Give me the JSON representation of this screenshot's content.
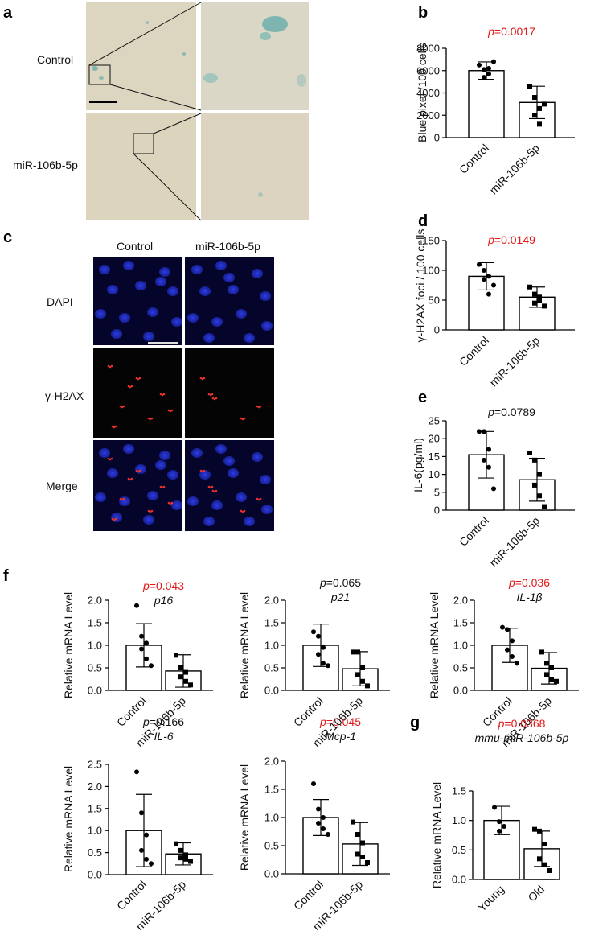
{
  "figure": {
    "panel_a": {
      "letter": "a",
      "row_labels": [
        "Control",
        "miR-106b-5p"
      ]
    },
    "panel_c": {
      "letter": "c",
      "col_labels": [
        "Control",
        "miR-106b-5p"
      ],
      "row_labels": [
        "DAPI",
        "γ-H2AX",
        "Merge"
      ]
    }
  },
  "colors": {
    "significant": "#e0191b",
    "nonsignificant": "#111111",
    "bar_fill": "#ffffff",
    "bar_stroke": "#000000",
    "microscopy_bg": "#d8d3bf",
    "dapi_bg": "#05052a",
    "dapi_nucleus": "#1f2fd6",
    "h2ax_bg": "#030303",
    "h2ax_dot": "#e12020"
  },
  "chart_data": [
    {
      "id": "b",
      "letter": "b",
      "type": "bar",
      "categories": [
        "Control",
        "miR-106b-5p"
      ],
      "ylabel": "Blue pixel /100 cells",
      "ylim": [
        0,
        8000
      ],
      "yticks": [
        "0",
        "2000",
        "4000",
        "6000",
        "8000"
      ],
      "ytick_values": [
        0,
        2000,
        4000,
        6000,
        8000
      ],
      "pvalue": "0.0017",
      "significant": true,
      "gene": "",
      "means": [
        6000,
        3150
      ],
      "sd": [
        780,
        1450
      ],
      "points": [
        [
          6500,
          6100,
          5700,
          5400,
          6200,
          6800
        ],
        [
          4600,
          3600,
          2600,
          2000,
          1200,
          3000
        ]
      ]
    },
    {
      "id": "d",
      "letter": "d",
      "type": "bar",
      "categories": [
        "Control",
        "miR-106b-5p"
      ],
      "ylabel": "γ-H2AX foci / 100 cells",
      "ylim": [
        0,
        150
      ],
      "yticks": [
        "0",
        "50",
        "100",
        "150"
      ],
      "ytick_values": [
        0,
        50,
        100,
        150
      ],
      "pvalue": "0.0149",
      "significant": true,
      "gene": "",
      "means": [
        90,
        55
      ],
      "sd": [
        23,
        17
      ],
      "points": [
        [
          110,
          100,
          90,
          85,
          60,
          75
        ],
        [
          72,
          60,
          50,
          45,
          55,
          40
        ]
      ]
    },
    {
      "id": "e",
      "letter": "e",
      "type": "bar",
      "categories": [
        "Control",
        "miR-106b-5p"
      ],
      "ylabel": "IL-6(pg/ml)",
      "ylim": [
        0,
        25
      ],
      "yticks": [
        "0",
        "5",
        "10",
        "15",
        "20",
        "25"
      ],
      "ytick_values": [
        0,
        5,
        10,
        15,
        20,
        25
      ],
      "pvalue": "0.0789",
      "significant": false,
      "gene": "",
      "means": [
        15.5,
        8.5
      ],
      "sd": [
        6.5,
        6
      ],
      "points": [
        [
          22,
          22,
          17,
          14,
          12,
          6
        ],
        [
          16,
          14,
          10,
          7,
          4,
          1
        ]
      ]
    },
    {
      "id": "f1",
      "letter": "f",
      "type": "bar",
      "categories": [
        "Control",
        "miR-106b-5p"
      ],
      "ylabel": "Relative mRNA Level",
      "ylim": [
        0,
        2.0
      ],
      "yticks": [
        "0.0",
        "0.5",
        "1.0",
        "1.5",
        "2.0"
      ],
      "ytick_values": [
        0,
        0.5,
        1.0,
        1.5,
        2.0
      ],
      "pvalue": "0.043",
      "significant": true,
      "gene": "p16",
      "means": [
        1.0,
        0.43
      ],
      "sd": [
        0.48,
        0.36
      ],
      "points": [
        [
          1.88,
          1.2,
          1.05,
          0.92,
          0.7,
          0.55
        ],
        [
          0.78,
          0.5,
          0.4,
          0.3,
          0.2,
          0.12
        ]
      ]
    },
    {
      "id": "f2",
      "letter": "",
      "type": "bar",
      "categories": [
        "Control",
        "miR-106b-5p"
      ],
      "ylabel": "Relative mRNA Level",
      "ylim": [
        0,
        2.0
      ],
      "yticks": [
        "0.0",
        "0.5",
        "1.0",
        "1.5",
        "2.0"
      ],
      "ytick_values": [
        0,
        0.5,
        1.0,
        1.5,
        2.0
      ],
      "pvalue": "0.065",
      "significant": false,
      "gene": "p21",
      "means": [
        1.0,
        0.48
      ],
      "sd": [
        0.47,
        0.38
      ],
      "points": [
        [
          1.3,
          1.2,
          0.95,
          0.8,
          0.6,
          0.55
        ],
        [
          0.85,
          0.85,
          0.5,
          0.35,
          0.2,
          0.1
        ]
      ]
    },
    {
      "id": "f3",
      "letter": "",
      "type": "bar",
      "categories": [
        "Control",
        "miR-106b-5p"
      ],
      "ylabel": "Relative mRNA Level",
      "ylim": [
        0,
        2.0
      ],
      "yticks": [
        "0.0",
        "0.5",
        "1.0",
        "1.5",
        "2.0"
      ],
      "ytick_values": [
        0,
        0.5,
        1.0,
        1.5,
        2.0
      ],
      "pvalue": "0.036",
      "significant": true,
      "gene": "IL-1β",
      "means": [
        1.0,
        0.49
      ],
      "sd": [
        0.38,
        0.35
      ],
      "points": [
        [
          1.4,
          1.35,
          1.1,
          0.9,
          0.75,
          0.6
        ],
        [
          0.85,
          0.6,
          0.5,
          0.35,
          0.25,
          0.2
        ]
      ]
    },
    {
      "id": "f4",
      "letter": "",
      "type": "bar",
      "categories": [
        "Control",
        "miR-106b-5p"
      ],
      "ylabel": "Relative mRNA Level",
      "ylim": [
        0,
        2.5
      ],
      "yticks": [
        "0.0",
        "0.5",
        "1.0",
        "1.5",
        "2.0",
        "2.5"
      ],
      "ytick_values": [
        0,
        0.5,
        1.0,
        1.5,
        2.0,
        2.5
      ],
      "pvalue": "0.166",
      "significant": false,
      "gene": "IL-6",
      "means": [
        1.0,
        0.47
      ],
      "sd": [
        0.82,
        0.25
      ],
      "points": [
        [
          2.33,
          1.4,
          0.9,
          0.55,
          0.35,
          0.25
        ],
        [
          0.7,
          0.55,
          0.45,
          0.38,
          0.35,
          0.3
        ]
      ]
    },
    {
      "id": "f5",
      "letter": "",
      "type": "bar",
      "categories": [
        "Control",
        "miR-106b-5p"
      ],
      "ylabel": "Relative mRNA Level",
      "ylim": [
        0,
        2.0
      ],
      "yticks": [
        "0.0",
        "0.5",
        "1.0",
        "1.5",
        "2.0"
      ],
      "ytick_values": [
        0,
        0.5,
        1.0,
        1.5,
        2.0
      ],
      "pvalue": "0.045",
      "significant": true,
      "gene": "Mcp-1",
      "means": [
        1.0,
        0.53
      ],
      "sd": [
        0.32,
        0.38
      ],
      "points": [
        [
          1.6,
          1.15,
          1.0,
          0.9,
          0.8,
          0.7
        ],
        [
          0.92,
          0.7,
          0.55,
          0.35,
          0.3,
          0.2
        ]
      ]
    },
    {
      "id": "g",
      "letter": "g",
      "type": "bar",
      "categories": [
        "Young",
        "Old"
      ],
      "ylabel": "Relative mRNA Level",
      "ylim": [
        0,
        1.5
      ],
      "yticks": [
        "0.0",
        "0.5",
        "1.0",
        "1.5"
      ],
      "ytick_values": [
        0,
        0.5,
        1.0,
        1.5
      ],
      "pvalue": "0.0368",
      "significant": true,
      "gene": "mmu-miR-106b-5p",
      "means": [
        1.0,
        0.52
      ],
      "sd": [
        0.24,
        0.3
      ],
      "points": [
        [
          1.22,
          0.98,
          0.9,
          0.82
        ],
        [
          0.85,
          0.82,
          0.6,
          0.35,
          0.25,
          0.15
        ]
      ]
    }
  ]
}
